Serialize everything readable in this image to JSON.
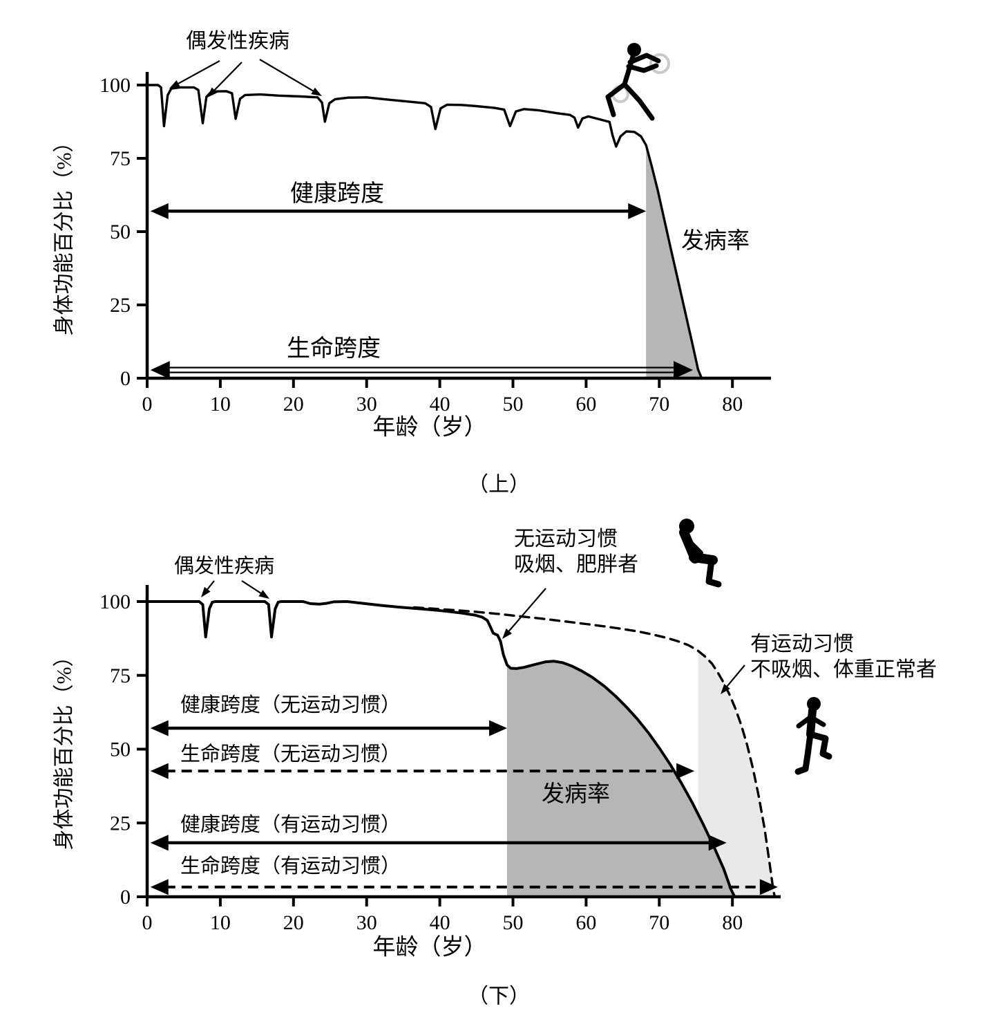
{
  "colors": {
    "curve": "#000000",
    "dark_region": "#b6b6b6",
    "light_region": "#e9e9e9",
    "text": "#000000",
    "background": "#ffffff"
  },
  "chart_data": [
    {
      "type": "line",
      "panel_label": "（上）",
      "xlabel": "年龄（岁）",
      "ylabel": "身体功能百分比（%）",
      "x_ticks": [
        0,
        10,
        20,
        30,
        40,
        50,
        60,
        70,
        80
      ],
      "y_ticks": [
        100,
        75,
        50,
        25,
        0
      ],
      "xlim": [
        0,
        85
      ],
      "ylim": [
        0,
        100
      ],
      "grid": false,
      "annotations": {
        "incidental_disease": "偶发性疾病",
        "morbidity": "发病率"
      },
      "series": [
        {
          "name": "身体功能",
          "style": "solid",
          "points": [
            [
              0,
              100
            ],
            [
              1.5,
              100
            ],
            [
              1.9,
              99.2
            ],
            [
              2.3,
              86
            ],
            [
              2.8,
              96.5
            ],
            [
              3.3,
              98.8
            ],
            [
              4.5,
              99.2
            ],
            [
              6.4,
              99.2
            ],
            [
              7.0,
              98.3
            ],
            [
              7.6,
              87
            ],
            [
              8.1,
              96
            ],
            [
              8.8,
              97.8
            ],
            [
              10.8,
              97.9
            ],
            [
              11.6,
              97.2
            ],
            [
              12.1,
              88.5
            ],
            [
              12.7,
              95.3
            ],
            [
              13.4,
              96.6
            ],
            [
              15.5,
              96.8
            ],
            [
              18,
              96.4
            ],
            [
              21,
              96.1
            ],
            [
              23.3,
              95.8
            ],
            [
              23.9,
              94
            ],
            [
              24.3,
              87.5
            ],
            [
              24.9,
              93.8
            ],
            [
              25.7,
              95.2
            ],
            [
              27.5,
              95.7
            ],
            [
              30,
              95.8
            ],
            [
              33,
              95
            ],
            [
              35.5,
              94.4
            ],
            [
              38,
              93.8
            ],
            [
              38.8,
              92.5
            ],
            [
              39.4,
              85
            ],
            [
              40.1,
              92
            ],
            [
              41,
              93.3
            ],
            [
              43,
              93.2
            ],
            [
              45,
              92.8
            ],
            [
              47.5,
              92.2
            ],
            [
              48.8,
              91.6
            ],
            [
              49.6,
              86
            ],
            [
              50.4,
              91
            ],
            [
              51.5,
              91.8
            ],
            [
              53.5,
              91.4
            ],
            [
              56,
              90.4
            ],
            [
              57.8,
              89.8
            ],
            [
              58.4,
              88.9
            ],
            [
              58.9,
              85.5
            ],
            [
              59.5,
              88.6
            ],
            [
              60.3,
              89.3
            ],
            [
              62,
              88.2
            ],
            [
              63.2,
              87.4
            ],
            [
              63.6,
              83
            ],
            [
              64.1,
              79
            ],
            [
              64.7,
              82.5
            ],
            [
              65.5,
              84.2
            ],
            [
              66.6,
              84
            ],
            [
              67.5,
              82.5
            ],
            [
              68.2,
              79.5
            ],
            [
              69,
              72
            ],
            [
              69.8,
              64
            ],
            [
              70.6,
              55
            ],
            [
              71.5,
              45
            ],
            [
              72.5,
              34
            ],
            [
              73.5,
              23
            ],
            [
              74.5,
              12
            ],
            [
              75.3,
              3
            ],
            [
              75.8,
              0
            ]
          ]
        }
      ],
      "regions": [
        {
          "name": "发病率",
          "series": 0,
          "x_from": 68.2,
          "x_to": 75.8,
          "fill": "dark_region"
        }
      ],
      "span_arrows": [
        {
          "label": "健康跨度",
          "pct": 57,
          "x_from": 0.45,
          "x_to": 68.2,
          "style": "solid"
        },
        {
          "label": "生命跨度",
          "pct": 2.8,
          "x_from": 0.45,
          "x_to": 74.6,
          "style": "hollow"
        }
      ]
    },
    {
      "type": "line",
      "panel_label": "（下）",
      "xlabel": "年龄（岁）",
      "ylabel": "身体功能百分比（%）",
      "x_ticks": [
        0,
        10,
        20,
        30,
        40,
        50,
        60,
        70,
        80
      ],
      "y_ticks": [
        100,
        75,
        50,
        25,
        0
      ],
      "xlim": [
        0,
        86.5
      ],
      "ylim": [
        0,
        100
      ],
      "grid": false,
      "annotations": {
        "incidental_disease": "偶发性疾病",
        "morbidity": "发病率",
        "sedentary": [
          "无运动习惯",
          "吸烟、肥胖者"
        ],
        "active": [
          "有运动习惯",
          "不吸烟、体重正常者"
        ]
      },
      "series": [
        {
          "name": "无运动习惯（吸烟、肥胖者）",
          "style": "solid",
          "points": [
            [
              0,
              100
            ],
            [
              7.1,
              100
            ],
            [
              7.6,
              99
            ],
            [
              8.0,
              88
            ],
            [
              8.5,
              97.5
            ],
            [
              8.9,
              99.8
            ],
            [
              9.3,
              100
            ],
            [
              16.1,
              100
            ],
            [
              16.6,
              99
            ],
            [
              17.0,
              88
            ],
            [
              17.5,
              97.5
            ],
            [
              17.9,
              99.8
            ],
            [
              18.3,
              100
            ],
            [
              21.3,
              100
            ],
            [
              22.3,
              99.3
            ],
            [
              23.5,
              99.1
            ],
            [
              24.5,
              99.4
            ],
            [
              25.5,
              99.9
            ],
            [
              27.3,
              100
            ],
            [
              29.5,
              99.4
            ],
            [
              32,
              98.7
            ],
            [
              34.5,
              98.1
            ],
            [
              37,
              97.6
            ],
            [
              39,
              97.2
            ],
            [
              41,
              96.7
            ],
            [
              43,
              96.1
            ],
            [
              44.8,
              95.4
            ],
            [
              45.8,
              94.7
            ],
            [
              46.5,
              93.6
            ],
            [
              46.9,
              91.5
            ],
            [
              47.3,
              89.3
            ],
            [
              47.9,
              88.6
            ],
            [
              48.3,
              86.5
            ],
            [
              48.7,
              82
            ],
            [
              49.2,
              78.5
            ],
            [
              49.7,
              77.4
            ],
            [
              50.5,
              77.3
            ],
            [
              51.5,
              77.7
            ],
            [
              53,
              78.7
            ],
            [
              54.5,
              79.6
            ],
            [
              55.6,
              79.8
            ],
            [
              56.8,
              79.3
            ],
            [
              58,
              78.2
            ],
            [
              59.3,
              76.6
            ],
            [
              60.8,
              74.4
            ],
            [
              62.5,
              71.3
            ],
            [
              64,
              68
            ],
            [
              65.5,
              64.3
            ],
            [
              67,
              60.2
            ],
            [
              68.5,
              55.6
            ],
            [
              70,
              50.4
            ],
            [
              71.5,
              44.8
            ],
            [
              73,
              38.6
            ],
            [
              74.5,
              31.9
            ],
            [
              76,
              24.6
            ],
            [
              77.5,
              16.8
            ],
            [
              78.8,
              9.5
            ],
            [
              79.8,
              2.5
            ],
            [
              80.3,
              0
            ]
          ]
        },
        {
          "name": "有运动习惯（不吸烟、体重正常者）",
          "style": "dashed",
          "points": [
            [
              36.5,
              98.0
            ],
            [
              39,
              97.6
            ],
            [
              42,
              97.1
            ],
            [
              45,
              96.5
            ],
            [
              48,
              95.8
            ],
            [
              51,
              95.0
            ],
            [
              54,
              94.2
            ],
            [
              57,
              93.3
            ],
            [
              60,
              92.4
            ],
            [
              62.5,
              91.6
            ],
            [
              65,
              90.7
            ],
            [
              67,
              89.9
            ],
            [
              69,
              88.9
            ],
            [
              71,
              87.7
            ],
            [
              72.5,
              86.6
            ],
            [
              74,
              85.2
            ],
            [
              75.2,
              83.5
            ],
            [
              76.2,
              81.5
            ],
            [
              77.2,
              79
            ],
            [
              78,
              76
            ],
            [
              78.8,
              72.5
            ],
            [
              79.6,
              68.5
            ],
            [
              80.4,
              63.8
            ],
            [
              81.2,
              58.2
            ],
            [
              82,
              51.5
            ],
            [
              82.8,
              43.5
            ],
            [
              83.6,
              34
            ],
            [
              84.4,
              23
            ],
            [
              85.1,
              11
            ],
            [
              85.6,
              2
            ],
            [
              85.8,
              0
            ]
          ]
        }
      ],
      "regions": [
        {
          "name": "有运动习惯区",
          "series": 1,
          "x_from": 75.3,
          "x_to": 85.8,
          "fill": "light_region"
        },
        {
          "name": "发病率",
          "series": 0,
          "x_from": 49.2,
          "x_to": 80.3,
          "fill": "dark_region"
        }
      ],
      "span_arrows": [
        {
          "label": "健康跨度（无运动习惯）",
          "pct": 57.1,
          "x_from": 0.45,
          "x_to": 49.2,
          "style": "solid"
        },
        {
          "label": "生命跨度（无运动习惯）",
          "pct": 42.6,
          "x_from": 0.45,
          "x_to": 74.8,
          "style": "dashed"
        },
        {
          "label": "健康跨度（有运动习惯）",
          "pct": 18.3,
          "x_from": 0.45,
          "x_to": 79.2,
          "style": "solid"
        },
        {
          "label": "生命跨度（有运动习惯）",
          "pct": 3.3,
          "x_from": 0.45,
          "x_to": 86.2,
          "style": "dashed"
        }
      ]
    }
  ]
}
